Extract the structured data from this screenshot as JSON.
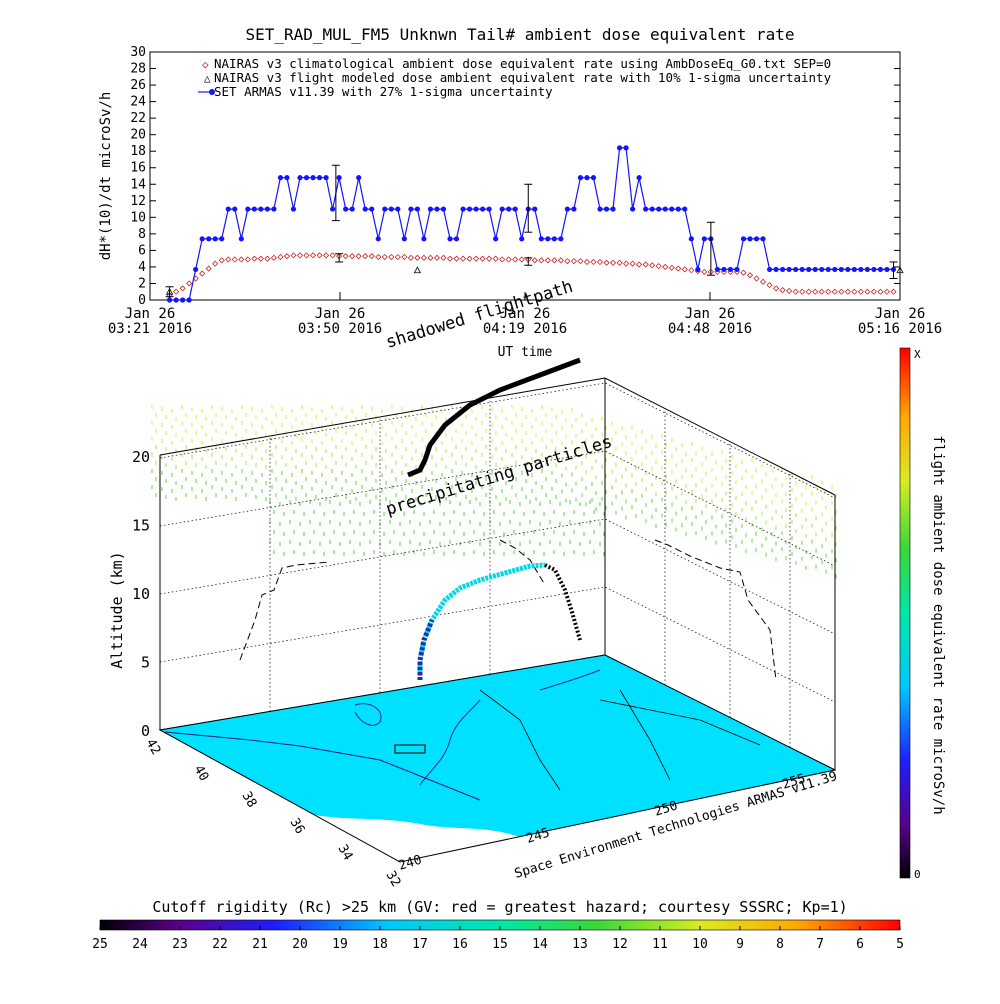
{
  "top_chart": {
    "title": "SET_RAD_MUL_FM5 Unknwn Tail#  ambient dose equivalent rate",
    "ylabel": "dH*(10)/dt microSv/h",
    "xlabel": "UT time",
    "legend": [
      "NAIRAS v3 climatological ambient dose equivalent rate using AmbDoseEq_G0.txt SEP=0",
      "NAIRAS v3 flight modeled dose ambient equivalent rate with 10% 1-sigma uncertainty",
      "SET ARMAS v11.39 with 27% 1-sigma uncertainty"
    ],
    "x_tick_labels": [
      [
        "Jan 26",
        "03:21 2016"
      ],
      [
        "Jan 26",
        "03:50 2016"
      ],
      [
        "Jan 26",
        "04:19 2016"
      ],
      [
        "Jan 26",
        "04:48 2016"
      ],
      [
        "Jan 26",
        "05:16 2016"
      ]
    ]
  },
  "chart_data": [
    {
      "type": "line",
      "title": "SET_RAD_MUL_FM5 Unknwn Tail#  ambient dose equivalent rate",
      "xlabel": "UT time",
      "ylabel": "dH*(10)/dt microSv/h",
      "x_unit": "minutes after Jan 26 03:21 2016 UT",
      "xlim": [
        0,
        115
      ],
      "ylim": [
        0,
        30
      ],
      "y_ticks": [
        0,
        2,
        4,
        6,
        8,
        10,
        12,
        14,
        16,
        18,
        20,
        22,
        24,
        26,
        28,
        30
      ],
      "legend_position": "top-left",
      "colors": {
        "nairas_clim": "#cc2222",
        "nairas_flight": "#000000",
        "armas": "#1414ff"
      },
      "series": [
        {
          "name": "SET ARMAS v11.39 with 27% 1-sigma uncertainty",
          "marker": "filled-circle",
          "x": [
            3,
            4,
            5,
            6,
            7,
            8,
            9,
            10,
            11,
            12,
            13,
            14,
            15,
            16,
            17,
            18,
            19,
            20,
            21,
            22,
            23,
            24,
            25,
            26,
            27,
            28,
            29,
            30,
            31,
            32,
            33,
            34,
            35,
            36,
            37,
            38,
            39,
            40,
            41,
            42,
            43,
            44,
            45,
            46,
            47,
            48,
            49,
            50,
            51,
            52,
            53,
            54,
            55,
            56,
            57,
            58,
            59,
            60,
            61,
            62,
            63,
            64,
            65,
            66,
            67,
            68,
            69,
            70,
            71,
            72,
            73,
            74,
            75,
            76,
            77,
            78,
            79,
            80,
            81,
            82,
            83,
            84,
            85,
            86,
            87,
            88,
            89,
            90,
            91,
            92,
            93,
            94,
            95,
            96,
            97,
            98,
            99,
            100,
            101,
            102,
            103,
            104,
            105,
            106,
            107,
            108,
            109,
            110,
            111,
            112,
            113,
            114
          ],
          "y": [
            0,
            0,
            0,
            0,
            3.7,
            7.4,
            7.4,
            7.4,
            7.4,
            11,
            11,
            7.4,
            11,
            11,
            11,
            11,
            11,
            14.8,
            14.8,
            11,
            14.8,
            14.8,
            14.8,
            14.8,
            14.8,
            11,
            14.8,
            11,
            11,
            14.8,
            11,
            11,
            7.4,
            11,
            11,
            11,
            7.4,
            11,
            11,
            7.4,
            11,
            11,
            11,
            7.4,
            7.4,
            11,
            11,
            11,
            11,
            11,
            7.4,
            11,
            11,
            11,
            7.4,
            11,
            11,
            7.4,
            7.4,
            7.4,
            7.4,
            11,
            11,
            14.8,
            14.8,
            14.8,
            11,
            11,
            11,
            18.4,
            18.4,
            11,
            14.8,
            11,
            11,
            11,
            11,
            11,
            11,
            11,
            7.4,
            3.7,
            7.4,
            7.4,
            3.7,
            3.7,
            3.7,
            3.7,
            7.4,
            7.4,
            7.4,
            7.4,
            3.7,
            3.7,
            3.7,
            3.7,
            3.7,
            3.7,
            3.7,
            3.7,
            3.7,
            3.7,
            3.7,
            3.7,
            3.7,
            3.7,
            3.7,
            3.7,
            3.7,
            3.7,
            3.7,
            3.7
          ]
        },
        {
          "name": "NAIRAS v3 climatological ambient dose equivalent rate using AmbDoseEq_G0.txt SEP=0",
          "marker": "open-diamond",
          "x": [
            3,
            4,
            5,
            6,
            7,
            8,
            9,
            10,
            11,
            12,
            13,
            14,
            15,
            16,
            17,
            18,
            19,
            20,
            21,
            22,
            23,
            24,
            25,
            26,
            27,
            28,
            29,
            30,
            31,
            32,
            33,
            34,
            35,
            36,
            37,
            38,
            39,
            40,
            41,
            42,
            43,
            44,
            45,
            46,
            47,
            48,
            49,
            50,
            51,
            52,
            53,
            54,
            55,
            56,
            57,
            58,
            59,
            60,
            61,
            62,
            63,
            64,
            65,
            66,
            67,
            68,
            69,
            70,
            71,
            72,
            73,
            74,
            75,
            76,
            77,
            78,
            79,
            80,
            81,
            82,
            83,
            84,
            85,
            86,
            87,
            88,
            89,
            90,
            91,
            92,
            93,
            94,
            95,
            96,
            97,
            98,
            99,
            100,
            101,
            102,
            103,
            104,
            105,
            106,
            107,
            108,
            109,
            110,
            111,
            112,
            113,
            114
          ],
          "y": [
            0.6,
            1.0,
            1.4,
            2.0,
            2.6,
            3.2,
            3.8,
            4.4,
            4.8,
            4.9,
            4.9,
            4.9,
            4.9,
            5.0,
            5.0,
            5.0,
            5.1,
            5.2,
            5.3,
            5.4,
            5.4,
            5.4,
            5.4,
            5.4,
            5.4,
            5.4,
            5.3,
            5.3,
            5.3,
            5.3,
            5.3,
            5.3,
            5.2,
            5.2,
            5.2,
            5.2,
            5.2,
            5.1,
            5.1,
            5.1,
            5.1,
            5.1,
            5.1,
            5.0,
            5.0,
            5.0,
            5.0,
            5.0,
            5.0,
            5.0,
            5.0,
            4.9,
            4.9,
            4.9,
            4.9,
            4.9,
            4.8,
            4.8,
            4.8,
            4.8,
            4.8,
            4.7,
            4.7,
            4.7,
            4.6,
            4.6,
            4.6,
            4.5,
            4.5,
            4.5,
            4.4,
            4.4,
            4.3,
            4.3,
            4.2,
            4.1,
            4.0,
            3.9,
            3.8,
            3.7,
            3.6,
            3.5,
            3.4,
            3.4,
            3.4,
            3.4,
            3.4,
            3.4,
            3.3,
            3.0,
            2.6,
            2.2,
            1.8,
            1.4,
            1.2,
            1.1,
            1.0,
            1.0,
            1.0,
            1.0,
            1.0,
            1.0,
            1.0,
            1.0,
            1.0,
            1.0,
            1.0,
            1.0,
            1.0,
            1.0,
            1.0,
            1.0
          ]
        },
        {
          "name": "NAIRAS v3 flight modeled dose ambient equivalent rate with 10% 1-sigma uncertainty",
          "marker": "open-triangle",
          "x": [
            3,
            41,
            115
          ],
          "y": [
            1.0,
            3.6,
            3.6
          ]
        }
      ],
      "error_bars": [
        {
          "x": 28.5,
          "low": 9.6,
          "high": 16.3
        },
        {
          "x": 29,
          "low": 4.6,
          "high": 5.6
        },
        {
          "x": 58,
          "low": 8.2,
          "high": 14.0
        },
        {
          "x": 58,
          "low": 4.2,
          "high": 5.1
        },
        {
          "x": 86,
          "low": 3.0,
          "high": 9.4
        },
        {
          "x": 114,
          "low": 2.6,
          "high": 4.6
        },
        {
          "x": 3,
          "low": 0.4,
          "high": 1.6
        }
      ]
    },
    {
      "type": "scatter",
      "title": "",
      "ylabel": "Altitude (km)",
      "z_ticks": [
        0,
        5,
        10,
        15,
        20
      ],
      "lat_ticks": [
        42,
        40,
        38,
        36,
        34,
        32
      ],
      "lon_ticks": [
        240,
        245,
        250,
        255
      ],
      "credit": "Space Environment Technologies ARMAS v11.39",
      "annotations": [
        "shadowed flightpath",
        "precipitating particles"
      ]
    }
  ],
  "right_colorbar": {
    "label": "flight ambient dose equivalent rate microSv/h",
    "top_label": "X",
    "bottom_label": "0"
  },
  "bottom_colorbar": {
    "title": "Cutoff rigidity (Rc) >25 km (GV: red = greatest hazard; courtesy SSSRC; Kp=1)",
    "ticks": [
      "25",
      "24",
      "23",
      "22",
      "21",
      "20",
      "19",
      "18",
      "17",
      "16",
      "15",
      "14",
      "13",
      "12",
      "11",
      "10",
      "9",
      "8",
      "7",
      "6",
      "5"
    ]
  }
}
